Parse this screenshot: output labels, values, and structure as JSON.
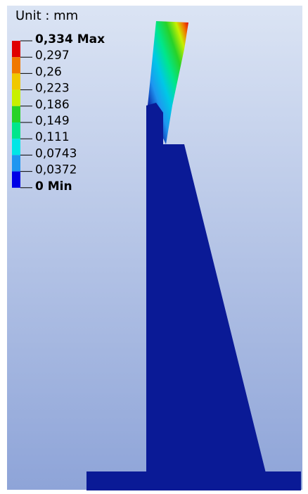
{
  "legend": {
    "title": "Unit : mm",
    "labels": [
      "0,334 Max",
      "0,297",
      "0,26",
      "0,223",
      "0,186",
      "0,149",
      "0,111",
      "0,0743",
      "0,0372",
      "0 Min"
    ],
    "colors": [
      "#e00000",
      "#f07800",
      "#f0c800",
      "#c8f000",
      "#28d228",
      "#00e68c",
      "#00e6e6",
      "#1e96f0",
      "#0000e6"
    ]
  }
}
